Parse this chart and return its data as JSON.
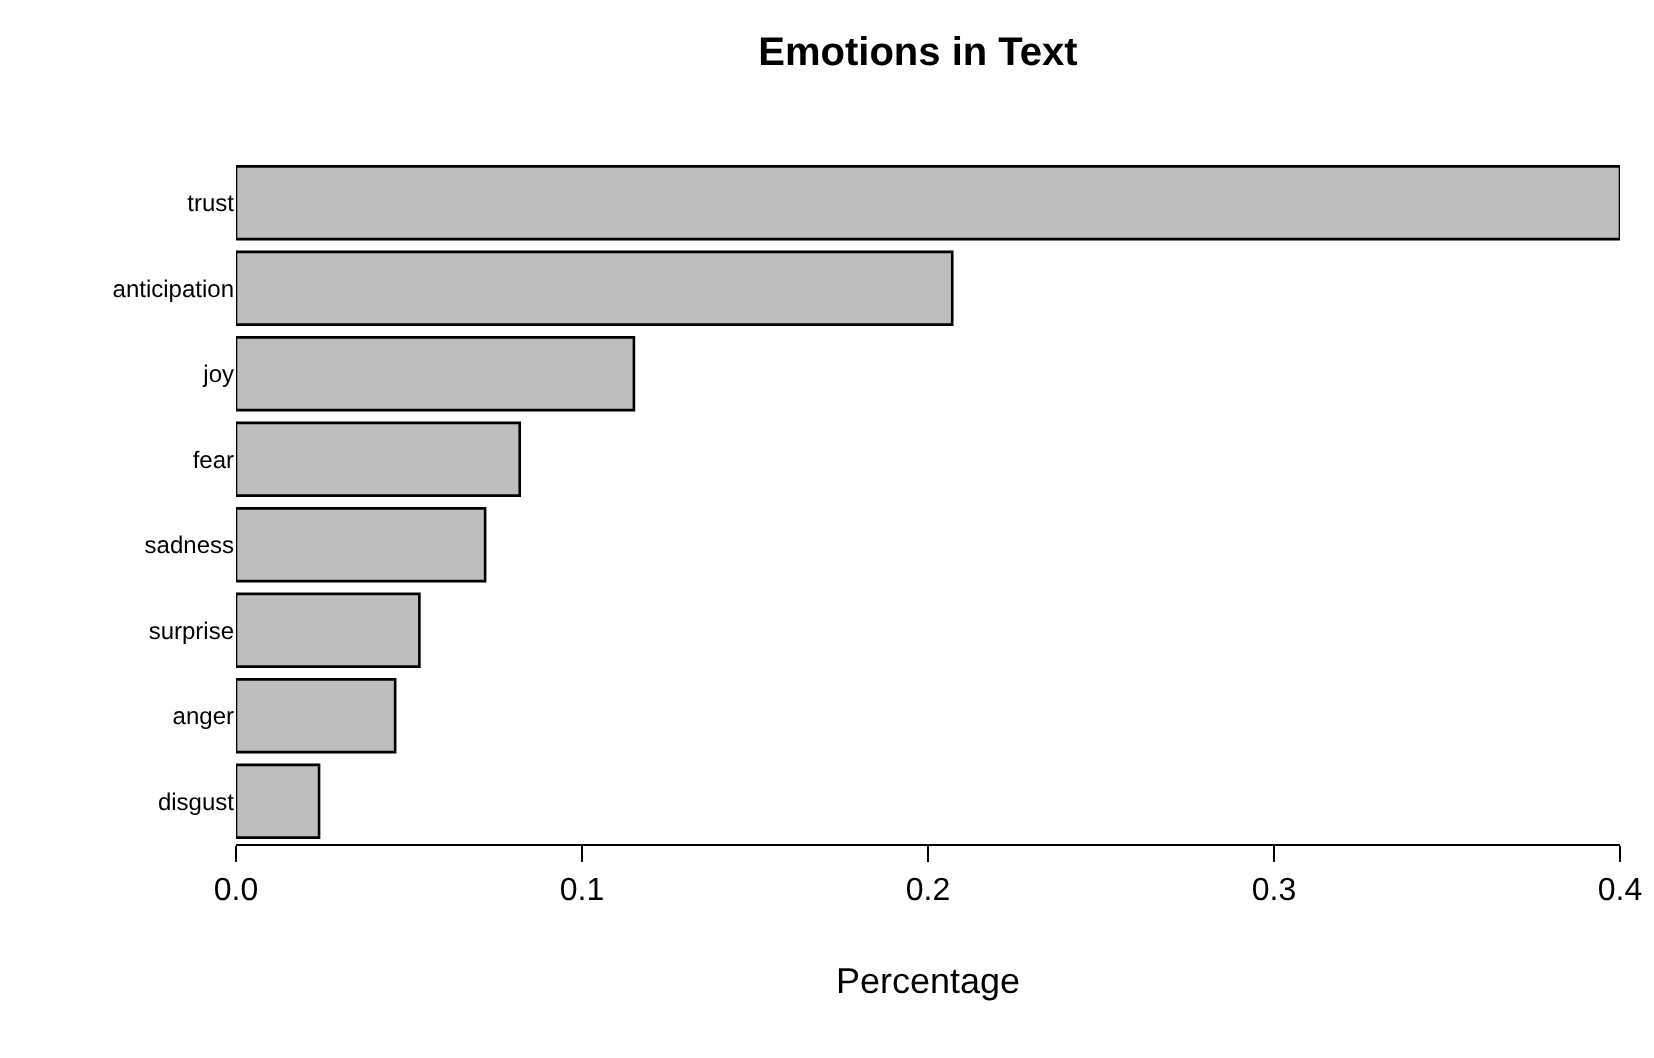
{
  "chart_data": {
    "type": "bar",
    "orientation": "horizontal",
    "title": "Emotions in Text",
    "xlabel": "Percentage",
    "categories": [
      "trust",
      "anticipation",
      "joy",
      "fear",
      "sadness",
      "surprise",
      "anger",
      "disgust"
    ],
    "values": [
      0.4,
      0.207,
      0.115,
      0.082,
      0.072,
      0.053,
      0.046,
      0.024
    ],
    "color": "#bebebe",
    "xlim": [
      0,
      0.4
    ],
    "xticks": [
      {
        "value": 0,
        "label": "0.0"
      },
      0.1,
      0.2,
      0.3,
      0.4
    ],
    "grid": false,
    "legend": false
  }
}
